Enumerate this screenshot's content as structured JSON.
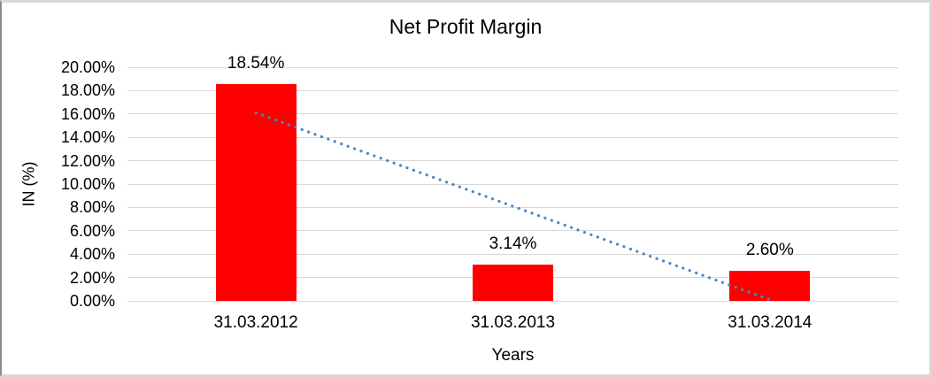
{
  "chart_data": {
    "type": "bar",
    "title": "Net Profit Margin",
    "xlabel": "Years",
    "ylabel": "IN (%)",
    "categories": [
      "31.03.2012",
      "31.03.2013",
      "31.03.2014"
    ],
    "values": [
      18.54,
      3.14,
      2.6
    ],
    "data_labels": [
      "18.54%",
      "3.14%",
      "2.60%"
    ],
    "ylim": [
      0,
      20
    ],
    "ytick_step": 2,
    "ytick_labels": [
      "0.00%",
      "2.00%",
      "4.00%",
      "6.00%",
      "8.00%",
      "10.00%",
      "12.00%",
      "14.00%",
      "16.00%",
      "18.00%",
      "20.00%"
    ],
    "grid": true,
    "legend": "none",
    "bar_color": "#ff0000",
    "gridline_color": "#d9d9d9",
    "text_color": "#000000",
    "trendline": {
      "shape": "linear",
      "line_style": "dotted",
      "color": "#4a86c8",
      "start_value": 16.1,
      "end_value": 0.1
    }
  }
}
